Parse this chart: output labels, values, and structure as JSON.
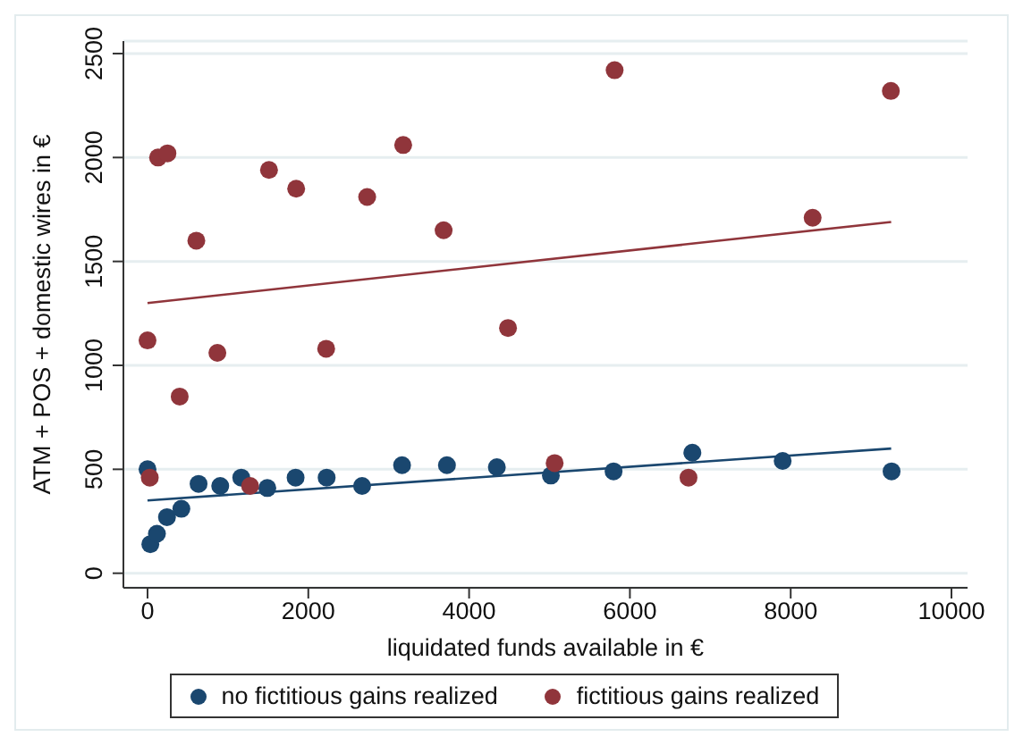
{
  "chart_data": {
    "type": "scatter",
    "xlabel": "liquidated funds available in €",
    "ylabel": "ATM + POS + domestic wires in €",
    "xlim": [
      -300,
      10200
    ],
    "xticks": [
      0,
      2000,
      4000,
      6000,
      8000,
      10000
    ],
    "ylim": [
      -70,
      2560
    ],
    "yticks": [
      0,
      500,
      1000,
      1500,
      2000,
      2500
    ],
    "grid": "y",
    "legend": "bottom",
    "marker": "circle",
    "series": [
      {
        "name": "no fictitious gains realized",
        "color": "#1a476f",
        "x": [
          0,
          35,
          117,
          242,
          421,
          635,
          904,
          1166,
          1490,
          1842,
          2228,
          2669,
          3166,
          3724,
          4345,
          5017,
          5797,
          6777,
          7900,
          9255
        ],
        "values": [
          500,
          140,
          190,
          270,
          310,
          430,
          420,
          460,
          410,
          460,
          460,
          420,
          520,
          520,
          510,
          470,
          490,
          580,
          540,
          490
        ]
      },
      {
        "name": "fictitious gains realized",
        "color": "#90353b",
        "x": [
          0,
          28,
          131,
          248,
          400,
          607,
          869,
          1276,
          1511,
          1849,
          2222,
          2732,
          3180,
          3683,
          4484,
          5064,
          5810,
          6729,
          8273,
          9246
        ],
        "values": [
          1120,
          460,
          2000,
          2020,
          850,
          1600,
          1060,
          420,
          1940,
          1850,
          1080,
          1810,
          2060,
          1650,
          1180,
          530,
          2420,
          460,
          1710,
          2320
        ]
      },
      {
        "type": "line",
        "marker": "none",
        "color": "#1a476f",
        "x": [
          0,
          9250
        ],
        "values": [
          350,
          600
        ]
      },
      {
        "type": "line",
        "marker": "none",
        "color": "#90353b",
        "x": [
          0,
          9250
        ],
        "values": [
          1300,
          1690
        ]
      }
    ]
  }
}
